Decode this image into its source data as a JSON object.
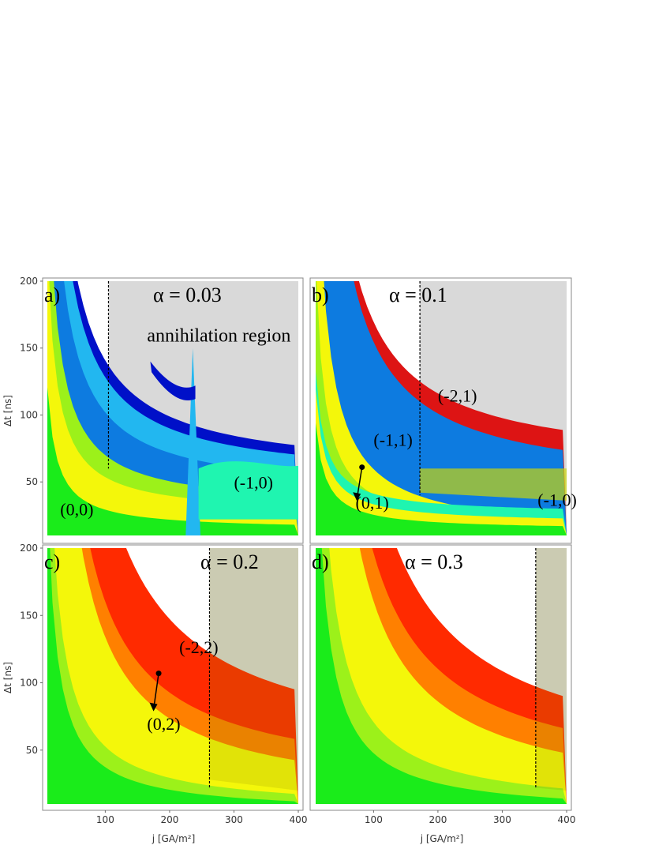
{
  "figure": {
    "ylabel": "Δt  [ns]",
    "xlabel": "j  [GA/m²]"
  },
  "colors": {
    "green": "#1aec1a",
    "lightgreen": "#9cf11a",
    "yellow": "#f4f70a",
    "olive": "#c9d60a",
    "orange": "#ff8000",
    "red": "#ff2a00",
    "darkred": "#d81b00",
    "blue": "#0d7be0",
    "lightblue": "#22b7f0",
    "navy": "#0010c8",
    "teal": "#1ff5b0",
    "gray": "#d9d9d9",
    "crimson": "#dd1414"
  },
  "chart_data": [
    {
      "type": "heatmap",
      "panel": "a",
      "label": "a)",
      "alpha_text": "α  =  0.03",
      "xlim": [
        10,
        400
      ],
      "ylim": [
        10,
        200
      ],
      "yticks": [
        50,
        100,
        150,
        200
      ],
      "xticks": [
        100,
        200,
        300,
        400
      ],
      "region_label": "annihilation region",
      "regions": [
        {
          "label": "(0,0)",
          "x": 30,
          "y": 25
        },
        {
          "label": "(-1,0)",
          "x": 300,
          "y": 45
        }
      ]
    },
    {
      "type": "heatmap",
      "panel": "b",
      "label": "b)",
      "alpha_text": "α  =  0.1",
      "xlim": [
        10,
        400
      ],
      "ylim": [
        10,
        200
      ],
      "xticks": [
        100,
        200,
        300,
        400
      ],
      "regions": [
        {
          "label": "(-2,1)",
          "x": 200,
          "y": 110
        },
        {
          "label": "(-1,1)",
          "x": 100,
          "y": 77
        },
        {
          "label": "(0,1)",
          "x": 72,
          "y": 30
        },
        {
          "label": "(-1,0)",
          "x": 355,
          "y": 32
        }
      ],
      "arrow": {
        "from": [
          82,
          61
        ],
        "to": [
          74,
          37
        ]
      }
    },
    {
      "type": "heatmap",
      "panel": "c",
      "label": "c)",
      "alpha_text": "α  =  0.2",
      "xlim": [
        10,
        400
      ],
      "ylim": [
        10,
        200
      ],
      "yticks": [
        50,
        100,
        150,
        200
      ],
      "xticks": [
        100,
        200,
        300,
        400
      ],
      "regions": [
        {
          "label": "(-2,2)",
          "x": 215,
          "y": 122
        },
        {
          "label": "(0,2)",
          "x": 165,
          "y": 65
        }
      ],
      "arrow": {
        "from": [
          183,
          107
        ],
        "to": [
          175,
          80
        ]
      }
    },
    {
      "type": "heatmap",
      "panel": "d",
      "label": "d)",
      "alpha_text": "α  =  0.3",
      "xlim": [
        10,
        400
      ],
      "ylim": [
        10,
        200
      ],
      "xticks": [
        100,
        200,
        300,
        400
      ],
      "regions": []
    }
  ]
}
